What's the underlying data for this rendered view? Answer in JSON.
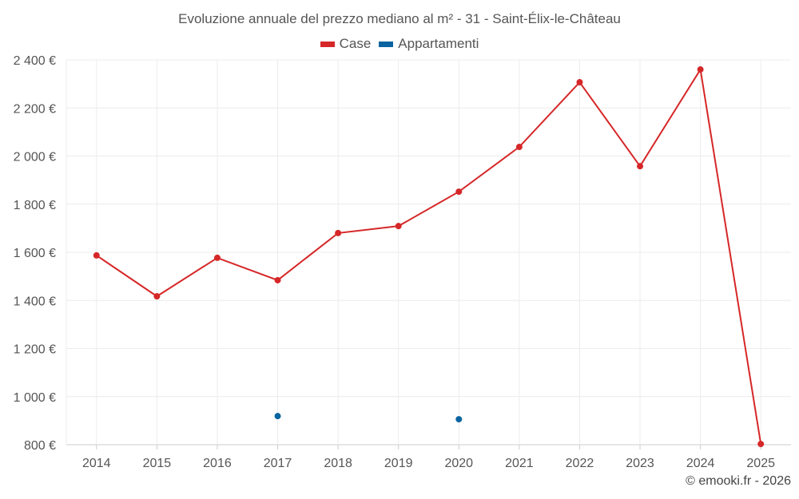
{
  "chart_data": {
    "type": "line",
    "title": "Evoluzione annuale del prezzo mediano al m² - 31 - Saint-Élix-le-Château",
    "categories": [
      "2014",
      "2015",
      "2016",
      "2017",
      "2018",
      "2019",
      "2020",
      "2021",
      "2022",
      "2023",
      "2024",
      "2025"
    ],
    "series": [
      {
        "name": "Case",
        "color": "#d62728",
        "values": [
          1587,
          1417,
          1577,
          1484,
          1680,
          1709,
          1852,
          2038,
          2307,
          1958,
          2360,
          803
        ]
      },
      {
        "name": "Appartamenti",
        "color": "#0a64a0",
        "values": [
          null,
          null,
          null,
          919,
          null,
          null,
          906,
          null,
          null,
          null,
          null,
          null
        ]
      }
    ],
    "ylim": [
      800,
      2400
    ],
    "yticks": [
      800,
      1000,
      1200,
      1400,
      1600,
      1800,
      2000,
      2200,
      2400
    ],
    "ytick_labels": [
      "800 €",
      "1 000 €",
      "1 200 €",
      "1 400 €",
      "1 600 €",
      "1 800 €",
      "2 000 €",
      "2 200 €",
      "2 400 €"
    ],
    "grid": true,
    "legend_position": "top-center",
    "xlabel": "",
    "ylabel": ""
  },
  "credit": "© emooki.fr - 2026"
}
